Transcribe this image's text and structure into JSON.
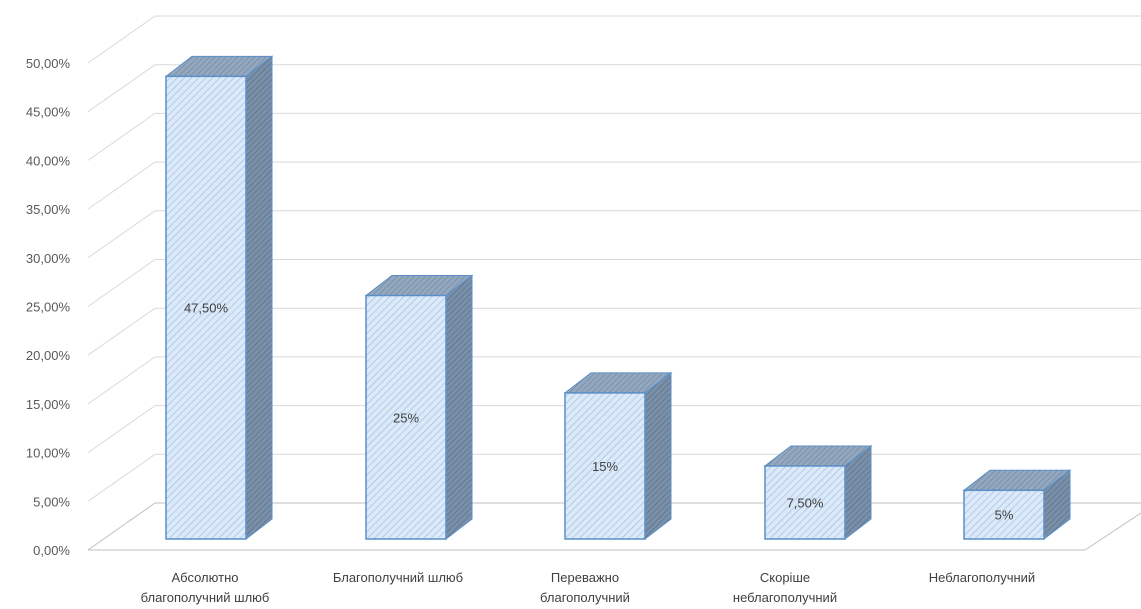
{
  "chart_data": {
    "type": "bar",
    "style": "3d-column",
    "categories": [
      [
        "Абсолютно",
        "благополучний шлюб"
      ],
      [
        "Благополучний шлюб"
      ],
      [
        "Переважно",
        "благополучний"
      ],
      [
        "Скоріше",
        "неблагополучний"
      ],
      [
        "Неблагополучний"
      ]
    ],
    "values": [
      47.5,
      25,
      15,
      7.5,
      5
    ],
    "data_labels": [
      "47,50%",
      "25%",
      "15%",
      "7,50%",
      "5%"
    ],
    "y_ticks": [
      "0,00%",
      "5,00%",
      "10,00%",
      "15,00%",
      "20,00%",
      "25,00%",
      "30,00%",
      "35,00%",
      "40,00%",
      "45,00%",
      "50,00%"
    ],
    "ylim": [
      0,
      50
    ],
    "grid": true,
    "title": "",
    "xlabel": "",
    "ylabel": "",
    "colors": {
      "front": "#dce9f8",
      "front_stroke": "#5b8fc7",
      "top": "#8aa3bd",
      "side": "#6f8aa6",
      "grid": "#d9d9d9",
      "floor": "#bfbfbf"
    }
  }
}
